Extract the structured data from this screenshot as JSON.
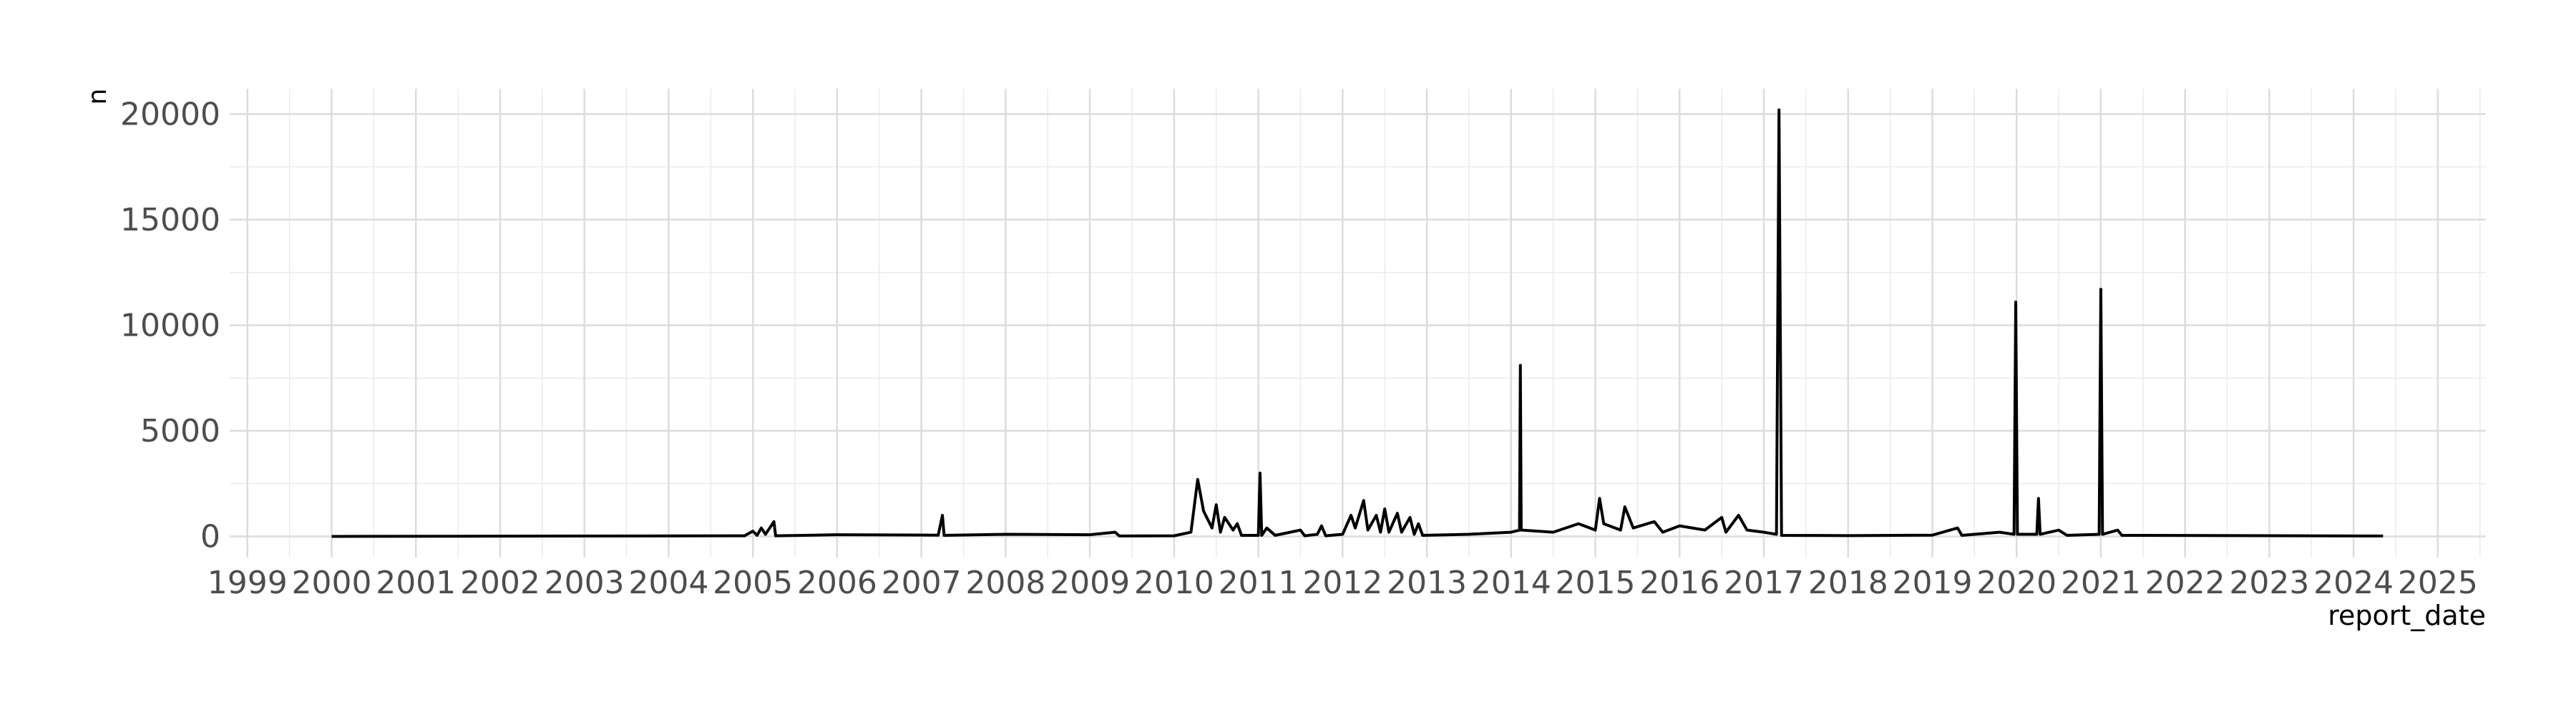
{
  "chart_data": {
    "type": "line",
    "x_label": "report_date",
    "y_label": "n",
    "x": [
      2000,
      2004.9,
      2005.0,
      2005.05,
      2005.1,
      2005.15,
      2005.25,
      2005.27,
      2006,
      2007.2,
      2007.25,
      2007.27,
      2008,
      2009,
      2009.3,
      2009.35,
      2010,
      2010.2,
      2010.28,
      2010.35,
      2010.45,
      2010.5,
      2010.55,
      2010.6,
      2010.7,
      2010.75,
      2010.8,
      2011.0,
      2011.02,
      2011.04,
      2011.1,
      2011.2,
      2011.5,
      2011.55,
      2011.7,
      2011.75,
      2011.8,
      2012.0,
      2012.1,
      2012.15,
      2012.25,
      2012.3,
      2012.4,
      2012.45,
      2012.5,
      2012.55,
      2012.65,
      2012.7,
      2012.8,
      2012.85,
      2012.9,
      2012.95,
      2013.5,
      2014.0,
      2014.1,
      2014.11,
      2014.12,
      2014.5,
      2014.8,
      2015.0,
      2015.05,
      2015.1,
      2015.3,
      2015.35,
      2015.45,
      2015.7,
      2015.8,
      2016.0,
      2016.3,
      2016.5,
      2016.55,
      2016.7,
      2016.8,
      2017.0,
      2017.15,
      2017.18,
      2017.21,
      2018,
      2019,
      2019.3,
      2019.35,
      2019.8,
      2019.97,
      2019.99,
      2020.01,
      2020.24,
      2020.26,
      2020.28,
      2020.5,
      2020.6,
      2020.98,
      2021.0,
      2021.02,
      2021.2,
      2021.25,
      2021.5,
      2024.35
    ],
    "series": [
      {
        "name": "n",
        "color": "#000000",
        "values": [
          0,
          30,
          250,
          50,
          400,
          100,
          700,
          30,
          80,
          60,
          1000,
          50,
          100,
          80,
          200,
          20,
          30,
          200,
          2700,
          1200,
          400,
          1500,
          200,
          900,
          300,
          600,
          50,
          50,
          3000,
          50,
          400,
          50,
          300,
          30,
          100,
          500,
          30,
          100,
          1000,
          400,
          1700,
          300,
          1000,
          200,
          1300,
          200,
          1100,
          200,
          900,
          100,
          600,
          50,
          100,
          200,
          300,
          8100,
          300,
          200,
          600,
          300,
          1800,
          600,
          300,
          1400,
          400,
          700,
          200,
          500,
          300,
          900,
          200,
          1000,
          300,
          200,
          100,
          20200,
          50,
          40,
          60,
          400,
          50,
          200,
          100,
          11100,
          100,
          100,
          1800,
          100,
          300,
          50,
          100,
          11700,
          100,
          300,
          50,
          50,
          20
        ]
      }
    ],
    "xlim": [
      1998.79,
      2025.57
    ],
    "ylim": [
      -1000,
      21200
    ],
    "xticks": [
      1999,
      2000,
      2001,
      2002,
      2003,
      2004,
      2005,
      2006,
      2007,
      2008,
      2009,
      2010,
      2011,
      2012,
      2013,
      2014,
      2015,
      2016,
      2017,
      2018,
      2019,
      2020,
      2021,
      2022,
      2023,
      2024,
      2025
    ],
    "xminor": [
      1999.5,
      2000.5,
      2001.5,
      2002.5,
      2003.5,
      2004.5,
      2005.5,
      2006.5,
      2007.5,
      2008.5,
      2009.5,
      2010.5,
      2011.5,
      2012.5,
      2013.5,
      2014.5,
      2015.5,
      2016.5,
      2017.5,
      2018.5,
      2019.5,
      2020.5,
      2021.5,
      2022.5,
      2023.5,
      2024.5,
      2025.5
    ],
    "yticks": [
      0,
      5000,
      10000,
      15000,
      20000
    ],
    "yminor": [
      2500,
      7500,
      12500,
      17500
    ],
    "grid": true
  }
}
